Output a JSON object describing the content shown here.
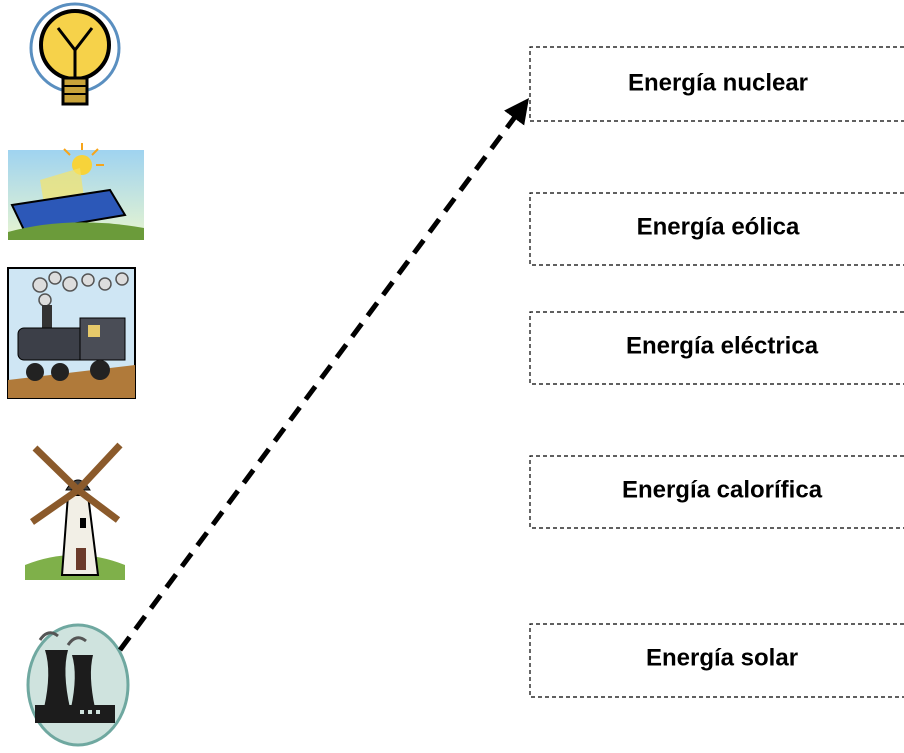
{
  "labels": [
    "Energía nuclear",
    "Energía eólica",
    "Energía eléctrica",
    "Energía calorífica",
    "Energía solar"
  ]
}
